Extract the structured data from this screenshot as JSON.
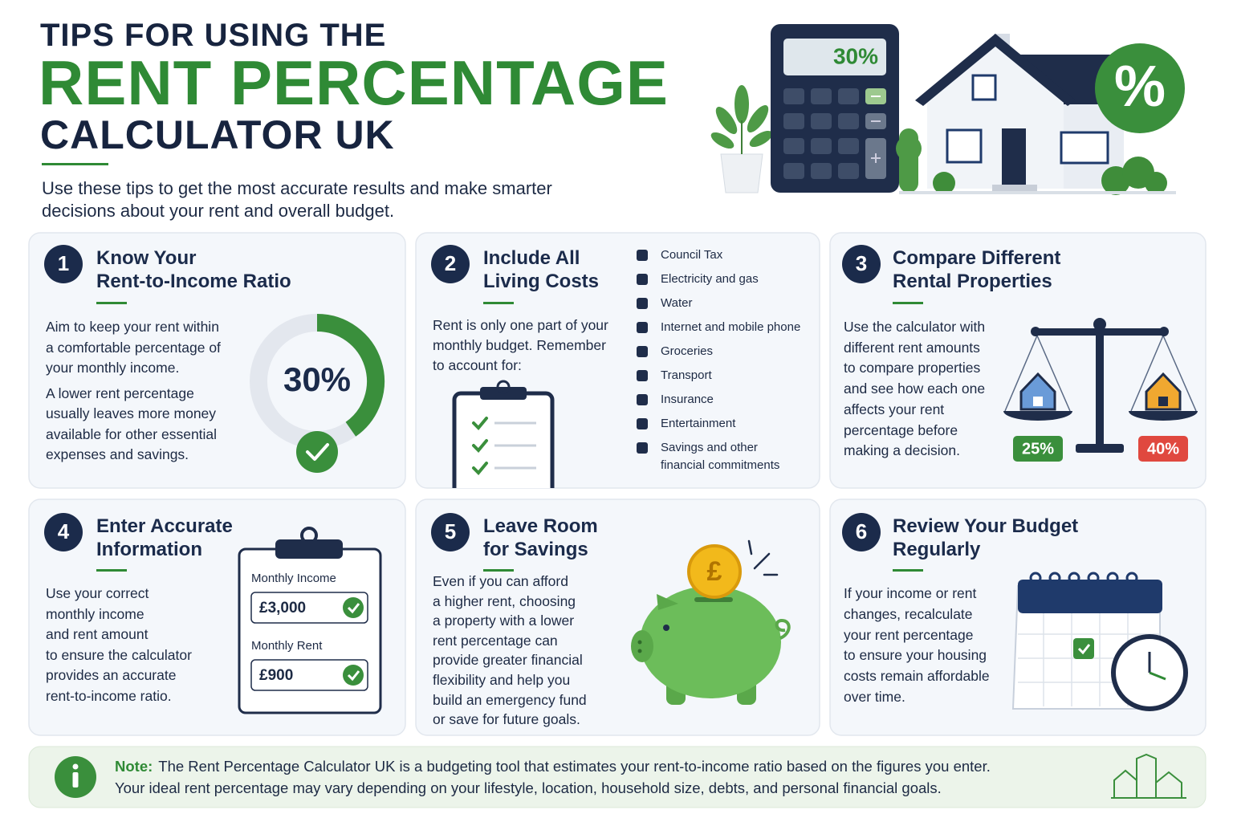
{
  "header": {
    "title_line1": "TIPS FOR USING THE",
    "title_line2": "RENT PERCENTAGE",
    "title_line3": "CALCULATOR UK",
    "intro": [
      "Use these tips to get the most accurate results and make smarter",
      "decisions about your rent and overall budget."
    ],
    "calculator_display": "30%",
    "badge": "%"
  },
  "tips": [
    {
      "number": "1",
      "title": [
        "Know Your",
        "Rent-to-Income Ratio"
      ],
      "body": [
        [
          "Aim to keep your rent within",
          "a comfortable percentage of",
          "your monthly income."
        ],
        [
          "A lower rent percentage",
          "usually leaves more money",
          "available for other essential",
          "expenses and savings."
        ]
      ],
      "gauge_label": "30%"
    },
    {
      "number": "2",
      "title": [
        "Include All",
        "Living Costs"
      ],
      "body": [
        [
          "Rent is only one part of your",
          "monthly budget. Remember",
          "to account for:"
        ]
      ],
      "costs": [
        [
          "Council Tax"
        ],
        [
          "Electricity and gas"
        ],
        [
          "Water"
        ],
        [
          "Internet and mobile phone"
        ],
        [
          "Groceries"
        ],
        [
          "Transport"
        ],
        [
          "Insurance"
        ],
        [
          "Entertainment"
        ],
        [
          "Savings and other",
          "financial commitments"
        ]
      ]
    },
    {
      "number": "3",
      "title": [
        "Compare Different",
        "Rental Properties"
      ],
      "body": [
        [
          "Use the calculator with",
          "different rent amounts",
          "to compare properties",
          "and see how each one",
          "affects your rent",
          "percentage before",
          "making a decision."
        ]
      ],
      "scale_labels": [
        "25%",
        "40%"
      ]
    },
    {
      "number": "4",
      "title": [
        "Enter Accurate",
        "Information"
      ],
      "body": [
        [
          "Use your correct",
          "monthly income",
          "and rent amount",
          "to ensure the calculator",
          "provides an accurate",
          "rent-to-income ratio."
        ]
      ],
      "form": {
        "income_label": "Monthly Income",
        "income_value": "£3,000",
        "rent_label": "Monthly Rent",
        "rent_value": "£900"
      }
    },
    {
      "number": "5",
      "title": [
        "Leave Room",
        "for Savings"
      ],
      "body": [
        [
          "Even if you can afford",
          "a higher rent, choosing",
          "a property with a lower",
          "rent percentage can",
          "provide greater financial",
          "flexibility and help you",
          "build an emergency fund",
          "or save for future goals."
        ]
      ],
      "coin": "£"
    },
    {
      "number": "6",
      "title": [
        "Review Your Budget",
        "Regularly"
      ],
      "body": [
        [
          "If your income or rent",
          "changes, recalculate",
          "your rent percentage",
          "to ensure your housing",
          "costs remain affordable",
          "over time."
        ]
      ]
    }
  ],
  "note": {
    "label": "Note:",
    "text": [
      "The Rent Percentage Calculator UK is a budgeting tool that estimates your rent-to-income ratio based on the figures you enter.",
      "Your ideal rent percentage may vary depending on your lifestyle, location, household size, debts, and personal financial goals."
    ]
  }
}
